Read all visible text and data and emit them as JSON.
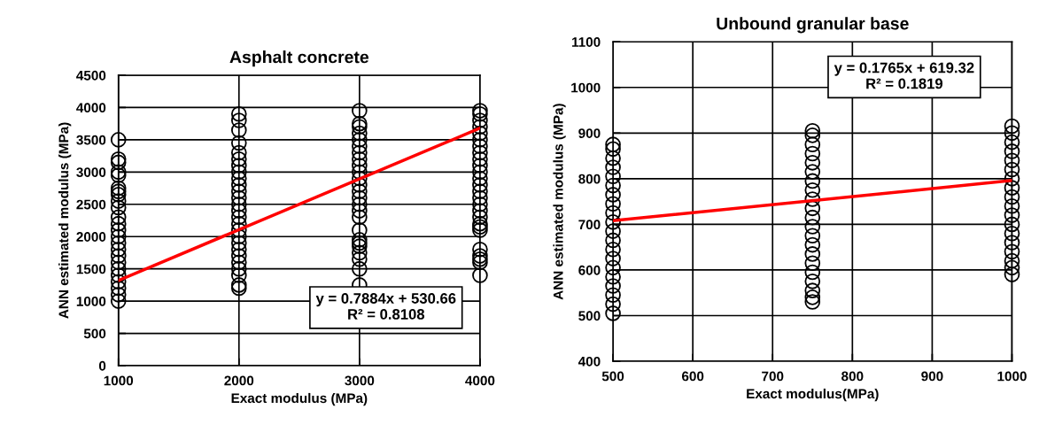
{
  "chart_data": [
    {
      "type": "scatter",
      "title": "Asphalt concrete",
      "xlabel": "Exact modulus (MPa)",
      "ylabel": "ANN estimated modulus (MPa)",
      "xlim": [
        1000,
        4000
      ],
      "xticks": [
        1000,
        2000,
        3000,
        4000
      ],
      "ylim": [
        0,
        4500
      ],
      "yticks": [
        0,
        500,
        1000,
        1500,
        2000,
        2500,
        3000,
        3500,
        4000,
        4500
      ],
      "grid": true,
      "marker": "circle",
      "annotations": [
        "y = 0.7884x + 530.66\nR² = 0.8108"
      ],
      "series": [
        {
          "color": "#000000",
          "x": [
            1000,
            1000,
            1000,
            1000,
            1000,
            1000,
            1000,
            1000,
            1000,
            1000,
            1000,
            1000,
            1000,
            1000,
            1000,
            1000,
            1000,
            1000,
            1000,
            1000,
            1000,
            1000,
            1000,
            1000
          ],
          "values": [
            1000,
            1100,
            1200,
            1300,
            1400,
            1500,
            1600,
            1700,
            1800,
            1900,
            2000,
            2100,
            2200,
            2300,
            2450,
            2550,
            2650,
            2700,
            2750,
            2950,
            3000,
            3150,
            3200,
            3500
          ]
        },
        {
          "color": "#000000",
          "x": [
            2000,
            2000,
            2000,
            2000,
            2000,
            2000,
            2000,
            2000,
            2000,
            2000,
            2000,
            2000,
            2000,
            2000,
            2000,
            2000,
            2000,
            2000,
            2000,
            2000,
            2000,
            2000,
            2000,
            2000,
            2000,
            2000
          ],
          "values": [
            1200,
            1250,
            1400,
            1500,
            1600,
            1700,
            1800,
            1900,
            2000,
            2100,
            2200,
            2300,
            2400,
            2500,
            2600,
            2700,
            2800,
            2900,
            3000,
            3100,
            3200,
            3300,
            3450,
            3650,
            3800,
            3900
          ]
        },
        {
          "color": "#000000",
          "x": [
            3000,
            3000,
            3000,
            3000,
            3000,
            3000,
            3000,
            3000,
            3000,
            3000,
            3000,
            3000,
            3000,
            3000,
            3000,
            3000,
            3000,
            3000,
            3000,
            3000,
            3000,
            3000,
            3000,
            3000,
            3000
          ],
          "values": [
            1250,
            1500,
            1650,
            1750,
            1850,
            1900,
            1950,
            2100,
            2300,
            2400,
            2500,
            2600,
            2700,
            2800,
            2900,
            3000,
            3100,
            3200,
            3300,
            3400,
            3500,
            3600,
            3700,
            3750,
            3950
          ]
        },
        {
          "color": "#000000",
          "x": [
            4000,
            4000,
            4000,
            4000,
            4000,
            4000,
            4000,
            4000,
            4000,
            4000,
            4000,
            4000,
            4000,
            4000,
            4000,
            4000,
            4000,
            4000,
            4000,
            4000,
            4000,
            4000,
            4000,
            4000,
            4000,
            4000
          ],
          "values": [
            1400,
            1600,
            1650,
            1700,
            1800,
            2100,
            2150,
            2200,
            2300,
            2400,
            2500,
            2600,
            2700,
            2800,
            2900,
            3000,
            3100,
            3200,
            3300,
            3400,
            3500,
            3600,
            3700,
            3800,
            3900,
            3950
          ]
        },
        {
          "type": "line",
          "color": "#ff0000",
          "marker": "none",
          "x": [
            1000,
            4000
          ],
          "values": [
            1320,
            3680
          ]
        }
      ]
    },
    {
      "type": "scatter",
      "title": "Unbound granular base",
      "xlabel": "Exact modulus(MPa)",
      "ylabel": "ANN estimated modulus (MPa)",
      "xlim": [
        500,
        1000
      ],
      "xticks": [
        500,
        600,
        700,
        800,
        900,
        1000
      ],
      "ylim": [
        400,
        1100
      ],
      "yticks": [
        400,
        500,
        600,
        700,
        800,
        900,
        1000,
        1100
      ],
      "grid": true,
      "marker": "circle",
      "annotations": [
        "y = 0.1765x + 619.32\nR² = 0.1819"
      ],
      "series": [
        {
          "color": "#000000",
          "x": [
            500,
            500,
            500,
            500,
            500,
            500,
            500,
            500,
            500,
            500,
            500,
            500,
            500,
            500,
            500,
            500,
            500,
            500,
            500,
            500
          ],
          "values": [
            505,
            525,
            545,
            565,
            585,
            605,
            625,
            645,
            665,
            685,
            705,
            725,
            745,
            765,
            785,
            805,
            825,
            845,
            865,
            875
          ]
        },
        {
          "color": "#000000",
          "x": [
            750,
            750,
            750,
            750,
            750,
            750,
            750,
            750,
            750,
            750,
            750,
            750,
            750,
            750,
            750,
            750,
            750,
            750,
            750,
            750,
            750
          ],
          "values": [
            530,
            540,
            555,
            575,
            595,
            615,
            635,
            655,
            675,
            695,
            715,
            735,
            755,
            775,
            795,
            815,
            835,
            855,
            875,
            895,
            905
          ]
        },
        {
          "color": "#000000",
          "x": [
            1000,
            1000,
            1000,
            1000,
            1000,
            1000,
            1000,
            1000,
            1000,
            1000,
            1000,
            1000,
            1000,
            1000,
            1000,
            1000,
            1000,
            1000
          ],
          "values": [
            590,
            605,
            620,
            640,
            660,
            680,
            700,
            720,
            740,
            760,
            780,
            800,
            820,
            840,
            860,
            880,
            900,
            915
          ]
        },
        {
          "type": "line",
          "color": "#ff0000",
          "marker": "none",
          "x": [
            500,
            1000
          ],
          "values": [
            708,
            796
          ]
        }
      ]
    }
  ]
}
